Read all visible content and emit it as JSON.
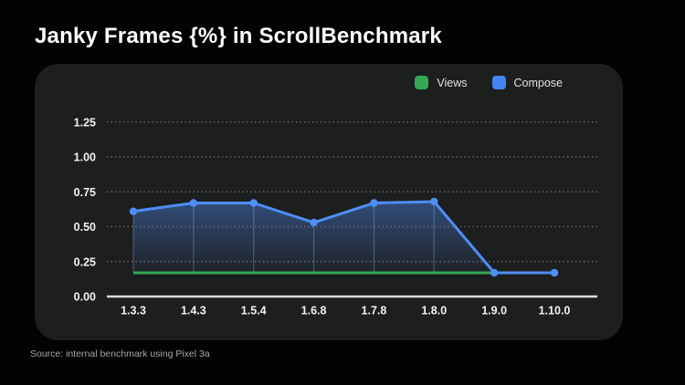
{
  "page": {
    "title": "Janky Frames {%} in ScrollBenchmark",
    "source_note": "Source: internal benchmark using Pixel 3a"
  },
  "legend": {
    "position": "top-right",
    "items": [
      {
        "label": "Views",
        "color": "#34a853"
      },
      {
        "label": "Compose",
        "color": "#4285f4"
      }
    ]
  },
  "chart_data": {
    "type": "line",
    "title": "Janky Frames {%} in ScrollBenchmark",
    "xlabel": "",
    "ylabel": "",
    "x_categories": [
      "1.3.3",
      "1.4.3",
      "1.5.4",
      "1.6.8",
      "1.7.8",
      "1.8.0",
      "1.9.0",
      "1.10.0"
    ],
    "y_ticks": [
      {
        "label": "0.00",
        "value": 0
      },
      {
        "label": "0.25",
        "value": 0.25
      },
      {
        "label": "0.50",
        "value": 0.5
      },
      {
        "label": "0.75",
        "value": 0.75
      },
      {
        "label": "1.00",
        "value": 1
      },
      {
        "label": "1.25",
        "value": 1.25
      }
    ],
    "ylim": [
      0,
      1.35
    ],
    "grid": "dotted-horizontal",
    "series": [
      {
        "name": "Views",
        "color": "#34a853",
        "line_width": 3,
        "markers": false,
        "area": false,
        "values": [
          0.17,
          0.17,
          0.17,
          0.17,
          0.17,
          0.17,
          0.17,
          0.17
        ]
      },
      {
        "name": "Compose",
        "color": "#4e8ef7",
        "line_width": 3,
        "markers": true,
        "area": true,
        "values": [
          0.61,
          0.67,
          0.67,
          0.53,
          0.67,
          0.68,
          0.17,
          0.17
        ]
      }
    ]
  },
  "style": {
    "background": "#030303",
    "panel": "#1d1e1e",
    "axis_line": "#dcdcdc",
    "grid_dot": "#9a9a9a",
    "tick_text": "#f2f2f2",
    "legend_text": "#e1e1e1",
    "source_text": "#a6a6a6"
  }
}
